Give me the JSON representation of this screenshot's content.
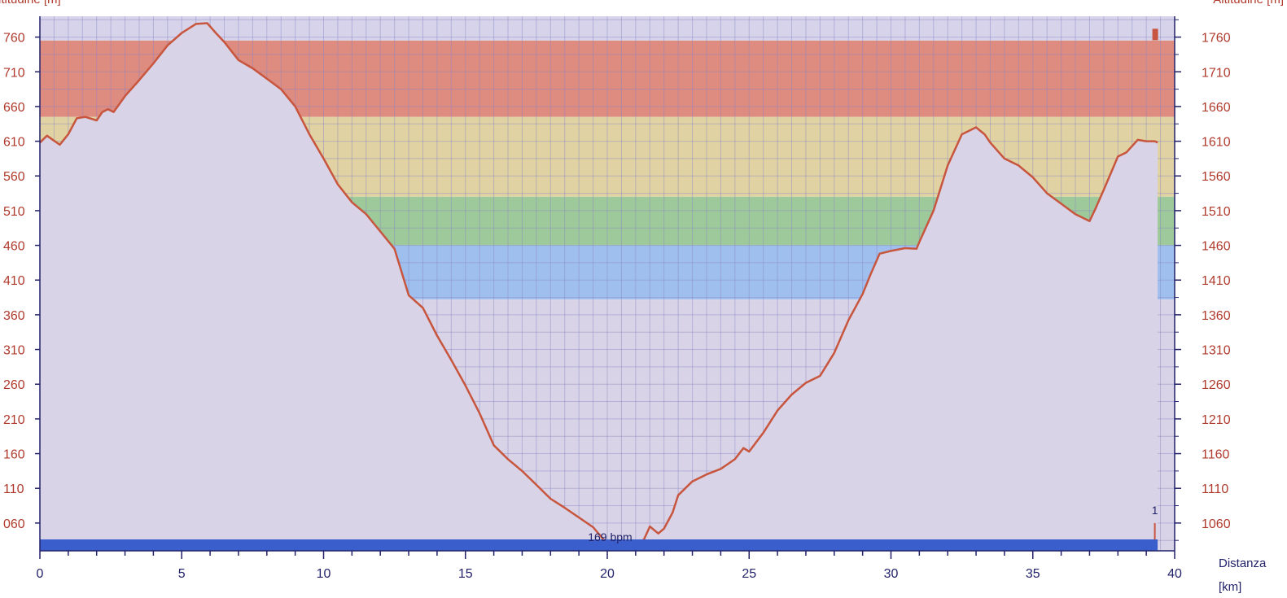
{
  "chart_data": {
    "type": "area",
    "title": "",
    "ylabel_left": "ltitudine [m]",
    "ylabel_right": "Altitudine [m]",
    "xlabel_line1": "Distanza",
    "xlabel_line2": "[km]",
    "xlim": [
      0,
      40
    ],
    "ylim": [
      1020,
      1790
    ],
    "x_ticks": [
      0,
      5,
      10,
      15,
      20,
      25,
      30,
      35,
      40
    ],
    "y_ticks_left": [
      "060",
      "110",
      "160",
      "210",
      "260",
      "310",
      "360",
      "410",
      "460",
      "510",
      "560",
      "610",
      "660",
      "710",
      "760"
    ],
    "y_ticks_right": [
      "1060",
      "1110",
      "1160",
      "1210",
      "1260",
      "1310",
      "1360",
      "1410",
      "1460",
      "1510",
      "1560",
      "1610",
      "1660",
      "1710",
      "1760"
    ],
    "y_tick_values": [
      1060,
      1110,
      1160,
      1210,
      1260,
      1310,
      1360,
      1410,
      1460,
      1510,
      1560,
      1610,
      1660,
      1710,
      1760
    ],
    "grid": true,
    "zones": [
      {
        "from": 1645,
        "to": 1755,
        "color": "#de8b80"
      },
      {
        "from": 1530,
        "to": 1645,
        "color": "#e0d2a2"
      },
      {
        "from": 1460,
        "to": 1530,
        "color": "#9ec99a"
      },
      {
        "from": 1382,
        "to": 1460,
        "color": "#9fbfee"
      }
    ],
    "colors": {
      "fill": "#d8d3e6",
      "line": "#c8553d",
      "grid": "#8a86c6",
      "tick_text": "#b03a2c",
      "x_tick_text": "#22226a",
      "base_bar": "#3a5fcd",
      "top_band": "#d6d3ea"
    },
    "series": [
      {
        "x": [
          0,
          0.25,
          0.7,
          1.0,
          1.3,
          1.6,
          2.0,
          2.2,
          2.4,
          2.6,
          3.0,
          3.5,
          4.0,
          4.5,
          5.0,
          5.5,
          5.9,
          6.2,
          6.5,
          7.0,
          7.5,
          8.0,
          8.5,
          9.0,
          9.5,
          10.0,
          10.5,
          11.0,
          11.5,
          12.0,
          12.5,
          13.0,
          13.5,
          14.0,
          14.5,
          15.0,
          15.5,
          16.0,
          16.5,
          17.0,
          17.5,
          18.0,
          18.5,
          19.0,
          19.5,
          20.0,
          20.5,
          21.0,
          21.3,
          21.5,
          21.8,
          22.0,
          22.3,
          22.5,
          23.0,
          23.5,
          24.0,
          24.5,
          24.8,
          25.0,
          25.5,
          26.0,
          26.5,
          27.0,
          27.5,
          28.0,
          28.5,
          29.0,
          29.3,
          29.6,
          30.0,
          30.5,
          30.9,
          31.0,
          31.5,
          32.0,
          32.5,
          33.0,
          33.3,
          33.5,
          34.0,
          34.5,
          35.0,
          35.5,
          36.0,
          36.5,
          37.0,
          37.2,
          37.5,
          38.0,
          38.3,
          38.7,
          39.0,
          39.3,
          39.4
        ],
        "y": [
          1608,
          1618,
          1605,
          1620,
          1643,
          1645,
          1640,
          1652,
          1656,
          1652,
          1675,
          1698,
          1722,
          1748,
          1766,
          1779,
          1780,
          1766,
          1753,
          1727,
          1715,
          1700,
          1685,
          1660,
          1620,
          1585,
          1548,
          1522,
          1505,
          1480,
          1455,
          1388,
          1370,
          1330,
          1295,
          1258,
          1218,
          1172,
          1152,
          1135,
          1115,
          1095,
          1082,
          1068,
          1054,
          1030,
          1026,
          1024,
          1037,
          1055,
          1045,
          1052,
          1075,
          1100,
          1120,
          1130,
          1138,
          1152,
          1168,
          1163,
          1190,
          1222,
          1245,
          1262,
          1272,
          1305,
          1352,
          1390,
          1420,
          1448,
          1452,
          1456,
          1455,
          1465,
          1510,
          1575,
          1620,
          1630,
          1620,
          1608,
          1585,
          1575,
          1558,
          1535,
          1520,
          1505,
          1495,
          1512,
          1540,
          1588,
          1594,
          1612,
          1610,
          1610,
          1608
        ]
      }
    ],
    "annotations": [
      {
        "text": "169 bpm",
        "x": 20.1,
        "y": 1034
      },
      {
        "text": "1",
        "x": 39.3,
        "y": 1073
      }
    ]
  }
}
